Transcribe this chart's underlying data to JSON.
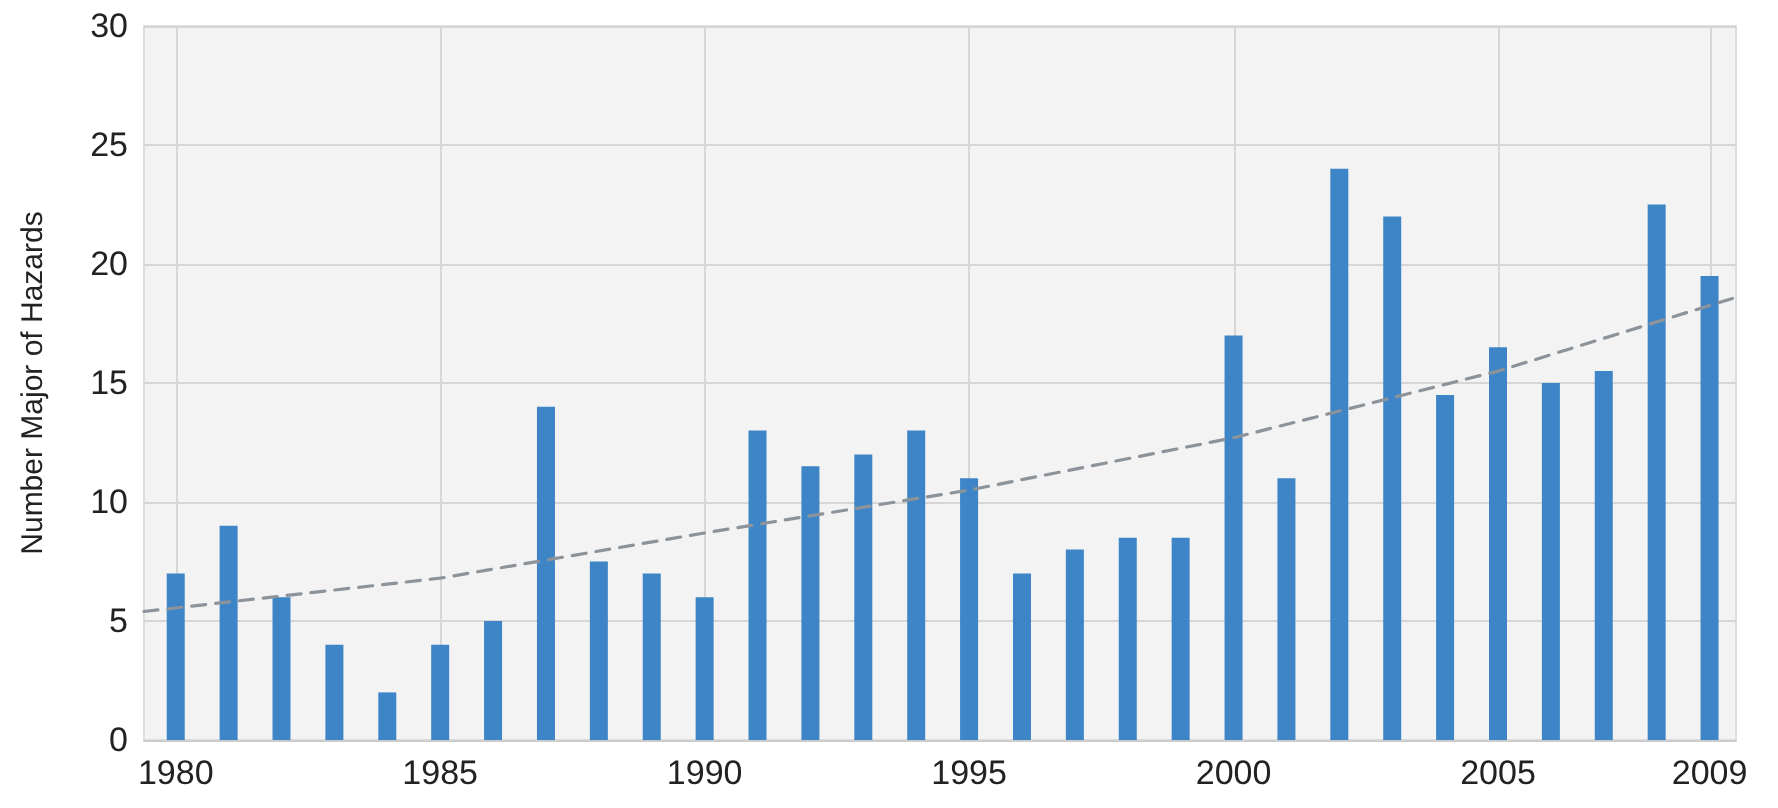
{
  "chart_data": {
    "type": "bar",
    "ylabel": "Number Major of Hazards",
    "x": [
      1980,
      1981,
      1982,
      1983,
      1984,
      1985,
      1986,
      1987,
      1988,
      1989,
      1990,
      1991,
      1992,
      1993,
      1994,
      1995,
      1996,
      1997,
      1998,
      1999,
      2000,
      2001,
      2002,
      2003,
      2004,
      2005,
      2006,
      2007,
      2008,
      2009
    ],
    "series": [
      {
        "color": "#3d85c6",
        "values": [
          7,
          9,
          6,
          4,
          2,
          4,
          5,
          14,
          7.5,
          7,
          6,
          13,
          11.5,
          12,
          13,
          11,
          7,
          8,
          8.5,
          8.5,
          17,
          11,
          24,
          22,
          14.5,
          16.5,
          15,
          15.5,
          22.5,
          19.5
        ]
      },
      {
        "type": "line",
        "color": "#8c939a",
        "line_style": "dashed",
        "marker": "none",
        "x": [
          1979.4,
          1985,
          1990,
          1995,
          2000,
          2005,
          2009.5
        ],
        "values": [
          5.4,
          6.8,
          8.7,
          10.5,
          12.7,
          15.5,
          18.6
        ]
      }
    ],
    "xlim": [
      1979.4,
      2009.5
    ],
    "xticks": [
      1980,
      1985,
      1990,
      1995,
      2000,
      2005,
      2009
    ],
    "ylim": [
      0,
      30
    ],
    "yticks": [
      0,
      5,
      10,
      15,
      20,
      25,
      30
    ],
    "grid": true
  }
}
